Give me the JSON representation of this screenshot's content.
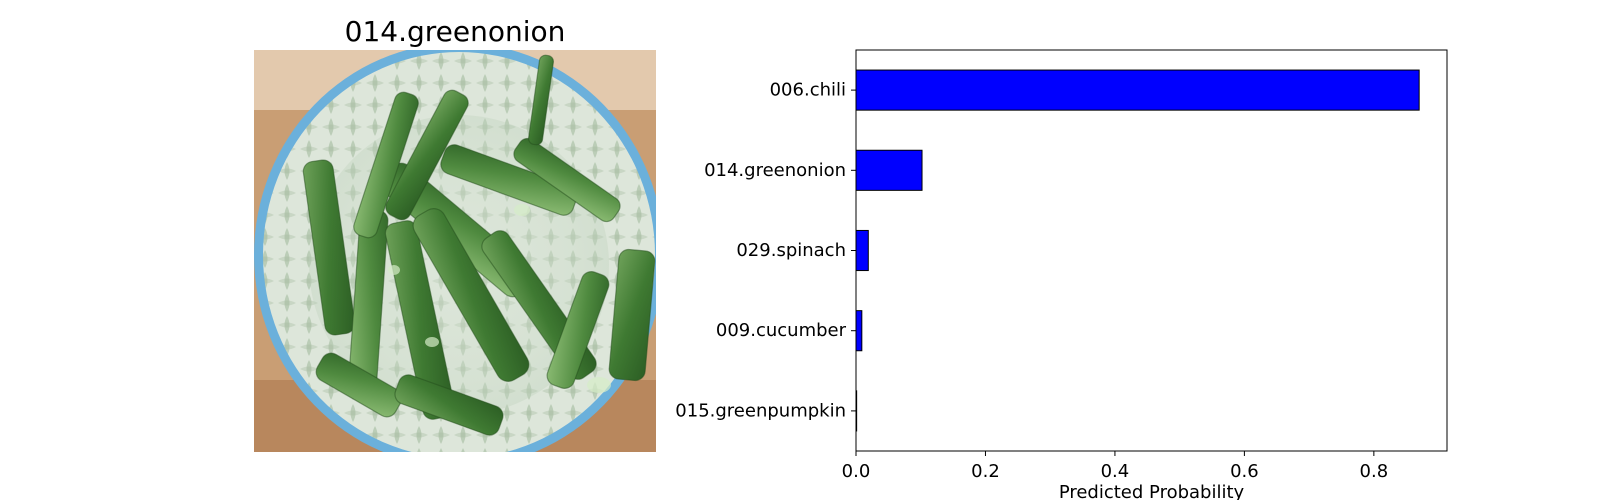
{
  "image_panel": {
    "title": "014.greenonion"
  },
  "chart_data": {
    "type": "bar",
    "orientation": "horizontal",
    "categories": [
      "006.chili",
      "014.greenonion",
      "029.spinach",
      "009.cucumber",
      "015.greenpumpkin"
    ],
    "values": [
      0.87,
      0.102,
      0.019,
      0.009,
      0.001
    ],
    "xlabel": "Predicted Probability",
    "ylabel": "",
    "xlim": [
      0,
      0.913
    ],
    "xticks": [
      0.0,
      0.2,
      0.4,
      0.6,
      0.8
    ],
    "xtick_labels": [
      "0.0",
      "0.2",
      "0.4",
      "0.6",
      "0.8"
    ],
    "bar_color": "#0000ff",
    "bar_edge_color": "#000000",
    "grid": false
  }
}
